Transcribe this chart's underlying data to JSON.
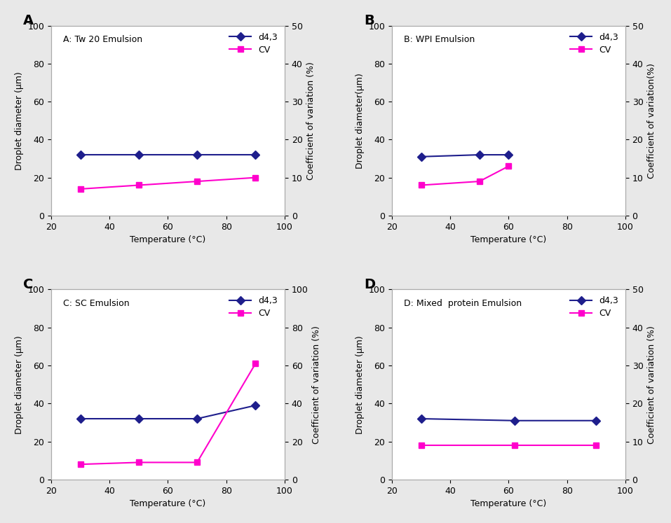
{
  "panels": [
    {
      "label": "A",
      "title": "A: Tw 20 Emulsion",
      "x": [
        30,
        50,
        70,
        90
      ],
      "d43": [
        32,
        32,
        32,
        32
      ],
      "cv": [
        7,
        8,
        9,
        10
      ],
      "xlim": [
        20,
        100
      ],
      "ylim_left": [
        0,
        100
      ],
      "ylim_right": [
        0,
        50
      ],
      "yticks_left": [
        0,
        20,
        40,
        60,
        80,
        100
      ],
      "yticks_right": [
        0,
        10,
        20,
        30,
        40,
        50
      ],
      "xticks": [
        20,
        40,
        60,
        80,
        100
      ],
      "ylabel_left": "Droplet diameter (μm)",
      "ylabel_right": "Coefficient of variation (%)",
      "xlabel": "Temperature (°C)"
    },
    {
      "label": "B",
      "title": "B: WPI Emulsion",
      "x": [
        30,
        50,
        60
      ],
      "d43": [
        31,
        32,
        32
      ],
      "cv": [
        8,
        9,
        13
      ],
      "xlim": [
        20,
        100
      ],
      "ylim_left": [
        0,
        100
      ],
      "ylim_right": [
        0,
        50
      ],
      "yticks_left": [
        0,
        20,
        40,
        60,
        80,
        100
      ],
      "yticks_right": [
        0,
        10,
        20,
        30,
        40,
        50
      ],
      "xticks": [
        20,
        40,
        60,
        80,
        100
      ],
      "ylabel_left": "Droplet diameter(μm)",
      "ylabel_right": "Coefficient of variation(%)",
      "xlabel": "Temperature (°C)"
    },
    {
      "label": "C",
      "title": "C: SC Emulsion",
      "x": [
        30,
        50,
        70,
        90
      ],
      "d43": [
        32,
        32,
        32,
        39
      ],
      "cv": [
        8,
        9,
        9,
        61
      ],
      "xlim": [
        20,
        100
      ],
      "ylim_left": [
        0,
        100
      ],
      "ylim_right": [
        0,
        100
      ],
      "yticks_left": [
        0,
        20,
        40,
        60,
        80,
        100
      ],
      "yticks_right": [
        0,
        20,
        40,
        60,
        80,
        100
      ],
      "xticks": [
        20,
        40,
        60,
        80,
        100
      ],
      "ylabel_left": "Droplet diameter (μm)",
      "ylabel_right": "Coefficient of variation (%)",
      "xlabel": "Temperature (°C)"
    },
    {
      "label": "D",
      "title": "D: Mixed  protein Emulsion",
      "x": [
        30,
        62,
        90
      ],
      "d43": [
        32,
        31,
        31
      ],
      "cv": [
        9,
        9,
        9
      ],
      "xlim": [
        20,
        100
      ],
      "ylim_left": [
        0,
        100
      ],
      "ylim_right": [
        0,
        50
      ],
      "yticks_left": [
        0,
        20,
        40,
        60,
        80,
        100
      ],
      "yticks_right": [
        0,
        10,
        20,
        30,
        40,
        50
      ],
      "xticks": [
        20,
        40,
        60,
        80,
        100
      ],
      "ylabel_left": "Droplet diameter (μm)",
      "ylabel_right": "Coefficient of variation (%)",
      "xlabel": "Temperature (°C)"
    }
  ],
  "color_d43": "#1e1e8c",
  "color_cv": "#ff00cc",
  "marker_d43": "D",
  "marker_cv": "s",
  "markersize": 6,
  "linewidth": 1.5,
  "background_color": "#e8e8e8",
  "panel_label_fontsize": 14,
  "legend_labels": [
    "d4,3",
    "CV"
  ],
  "title_fontsize": 9,
  "axis_fontsize": 9,
  "tick_fontsize": 9
}
